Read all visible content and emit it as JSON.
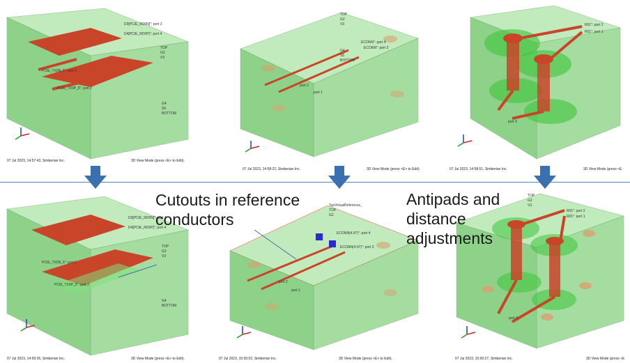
{
  "panels": [
    {
      "timestamp": "07 Jul 2023, 14:57:43, Simberian Inc.",
      "mode": "3D View Mode (press <E> to Edit).",
      "port_labels": [
        "D3[PCIE_RD0N]\": port 3",
        "D4[PCIE_RD0P]\": port 4",
        "PCIE_TX0N_5\": port 1",
        "PCIE_TX0P_5\": port 2"
      ],
      "layer_labels": [
        "TOP",
        "G2",
        "V3",
        "G4",
        "S5",
        "BOTTOM"
      ]
    },
    {
      "timestamp": "07 Jul 2023, 14:58:22, Simberian Inc.",
      "mode": "3D View Mode (press <E> to Edit).",
      "port_labels": [
        "ECONN\": port 4",
        "ECONN\": port 3",
        "port 2",
        "port 1"
      ],
      "layer_labels": [
        "TOP",
        "G2",
        "V3",
        "G4",
        "S5",
        "BOTTOM"
      ]
    },
    {
      "timestamp": "07 Jul 2023, 14:58:51, Simberian Inc.",
      "mode": "3D View Mode (press <E",
      "port_labels": [
        "R01\": port 2",
        "R01\": port 1",
        "port 3"
      ],
      "layer_labels": []
    },
    {
      "timestamp": "07 Jul 2023, 14:59:36, Simberian Inc.",
      "mode": "3D View Mode (press <E> to Edit).",
      "port_labels": [
        "D3[PCIE_RD0N]\": port 3",
        "D4[PCIE_RD0P]\": port 4",
        "PCIE_TX0N_5\": port 1",
        "PCIE_TX0P_5\": port 2"
      ],
      "layer_labels": [
        "TOP",
        "G2",
        "V3",
        "G4",
        "BOTTOM"
      ]
    },
    {
      "timestamp": "07 Jul 2023, 15:00:02, Simberian Inc.",
      "mode": "3D View Mode (press <E> to Edit).",
      "port_labels": [
        "ECONN(4.97)\": port 4",
        "ECONN(4.97)\": port 3",
        "port 2",
        "port 1"
      ],
      "layer_labels": [
        "TopVirtualReference_",
        "TOP",
        "G2"
      ]
    },
    {
      "timestamp": "07 Jul 2023, 15:00:27, Simberian Inc.",
      "mode": "3D View Mode (press <E",
      "port_labels": [
        "R01\": port 2",
        "R01\": port 1",
        "port 3"
      ],
      "layer_labels": [
        "TOP",
        "G2",
        "V3"
      ]
    }
  ],
  "callouts": {
    "cutouts": [
      "Cutouts in reference",
      "conductors"
    ],
    "antipads": [
      "Antipads and",
      "distance",
      "adjustments"
    ]
  },
  "colors": {
    "dielectric": "#7fd07a",
    "trace": "#c8452a",
    "arrow": "#3a6fb0",
    "divider": "#4a86c8"
  }
}
